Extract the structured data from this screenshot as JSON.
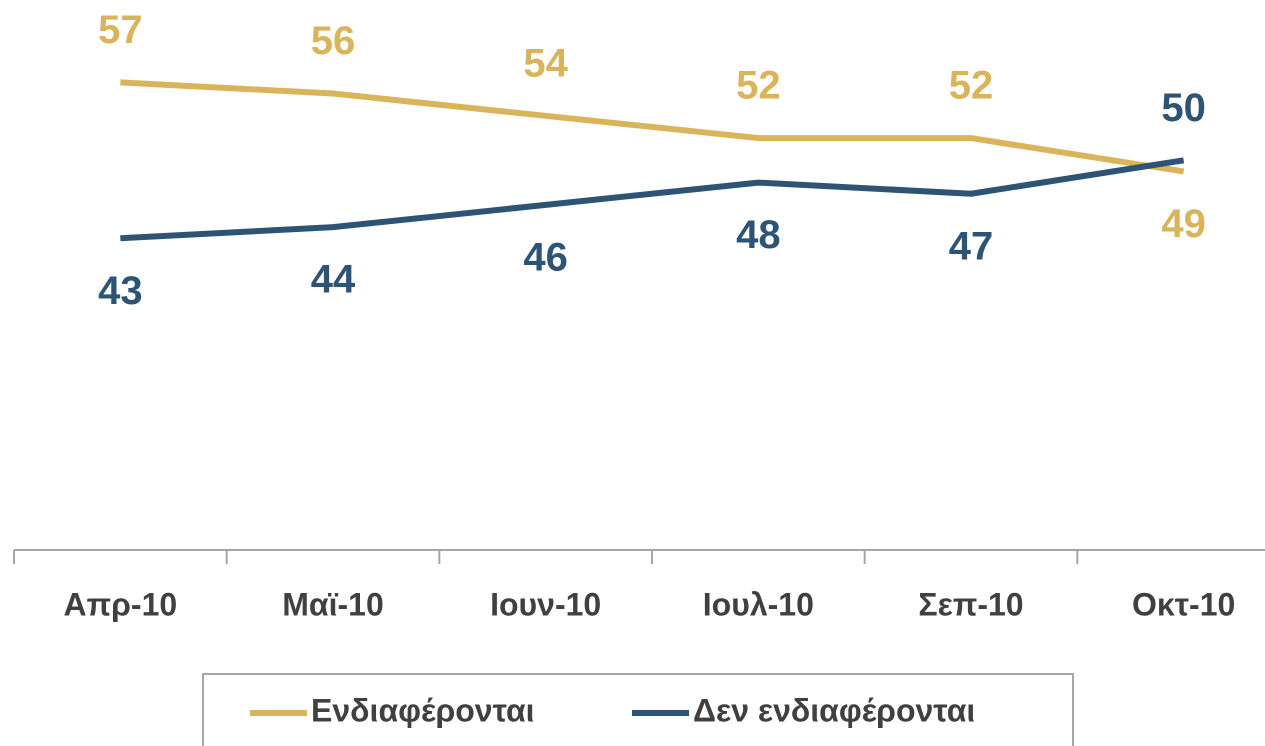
{
  "chart_data": {
    "type": "line",
    "categories": [
      "Απρ-10",
      "Μαϊ-10",
      "Ιουν-10",
      "Ιουλ-10",
      "Σεπ-10",
      "Οκτ-10"
    ],
    "series": [
      {
        "name": "Ενδιαφέρονται",
        "color": "#d9b45a",
        "values": [
          57,
          56,
          54,
          52,
          52,
          49
        ]
      },
      {
        "name": "Δεν ενδιαφέρονται",
        "color": "#2e5475",
        "values": [
          43,
          44,
          46,
          48,
          47,
          50
        ]
      }
    ],
    "ylim": [
      15,
      60
    ],
    "grid": false,
    "legend": "bottom"
  }
}
